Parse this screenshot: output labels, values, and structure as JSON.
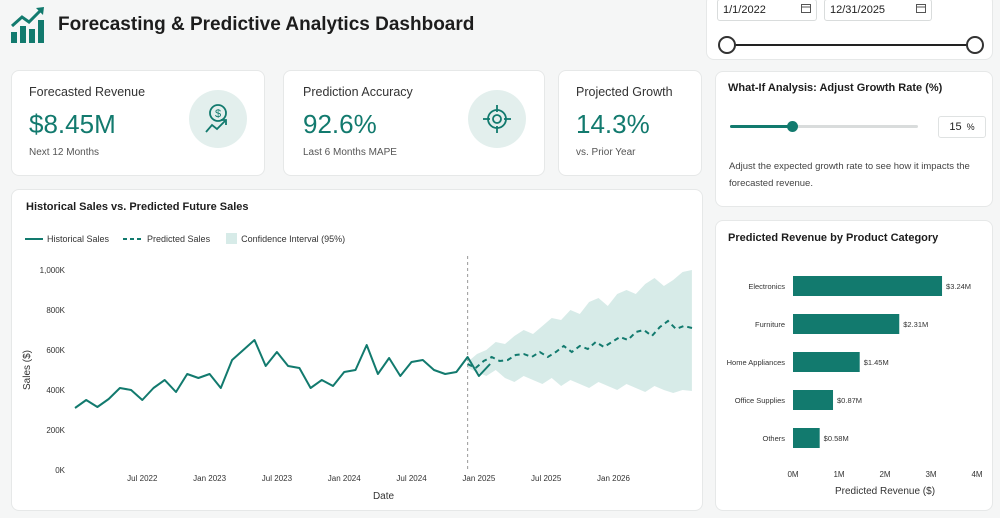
{
  "app": {
    "title": "Forecasting & Predictive Analytics Dashboard"
  },
  "date_range": {
    "start": "1/1/2022",
    "end": "12/31/2025"
  },
  "kpis": [
    {
      "label": "Forecasted Revenue",
      "value": "$8.45M",
      "sub": "Next 12 Months",
      "icon": "dollar-growth-icon"
    },
    {
      "label": "Prediction Accuracy",
      "value": "92.6%",
      "sub": "Last 6 Months MAPE",
      "icon": "target-icon"
    },
    {
      "label": "Projected Growth",
      "value": "14.3%",
      "sub": "vs. Prior Year"
    }
  ],
  "what_if": {
    "title": "What-If Analysis: Adjust Growth Rate (%)",
    "value": "15",
    "unit": "%",
    "slider_fraction": 0.33,
    "description": "Adjust the expected growth rate to see how it impacts the forecasted revenue."
  },
  "colors": {
    "accent": "#127a6e",
    "band": "#d7ebe8"
  },
  "chart_data": [
    {
      "type": "line",
      "title": "Historical Sales vs. Predicted Future Sales",
      "xlabel": "Date",
      "ylabel": "Sales ($)",
      "legend": {
        "historical": "Historical Sales",
        "predicted": "Predicted Sales",
        "band": "Confidence Interval (95%)",
        "position": "top-left"
      },
      "ylim": [
        0,
        1000000
      ],
      "y_ticks": [
        {
          "v": 0,
          "label": "0K"
        },
        {
          "v": 200000,
          "label": "200K"
        },
        {
          "v": 400000,
          "label": "400K"
        },
        {
          "v": 600000,
          "label": "600K"
        },
        {
          "v": 800000,
          "label": "800K"
        },
        {
          "v": 1000000,
          "label": "1,000K"
        }
      ],
      "x_ticks": [
        {
          "m": 6,
          "label": "Jul 2022"
        },
        {
          "m": 12,
          "label": "Jan 2023"
        },
        {
          "m": 18,
          "label": "Jul 2023"
        },
        {
          "m": 24,
          "label": "Jan 2024"
        },
        {
          "m": 30,
          "label": "Jul 2024"
        },
        {
          "m": 36,
          "label": "Jan 2025"
        },
        {
          "m": 42,
          "label": "Jul 2025"
        },
        {
          "m": 48,
          "label": "Jan 2026"
        }
      ],
      "x_range_months": [
        0,
        55
      ],
      "forecast_start_month": 35,
      "historical": [
        310,
        350,
        315,
        355,
        410,
        400,
        350,
        410,
        450,
        390,
        480,
        460,
        480,
        410,
        550,
        600,
        650,
        520,
        590,
        520,
        510,
        410,
        450,
        420,
        490,
        500,
        625,
        480,
        560,
        470,
        540,
        550,
        500,
        480,
        490,
        565,
        470,
        530
      ],
      "historical_start_month": 0,
      "predicted": [
        530,
        510,
        545,
        565,
        545,
        550,
        575,
        580,
        565,
        590,
        565,
        590,
        620,
        590,
        620,
        605,
        640,
        615,
        640,
        665,
        650,
        690,
        700,
        670,
        715,
        745,
        705,
        720,
        710
      ],
      "predicted_start_month": 35,
      "band_upper": [
        540,
        580,
        600,
        640,
        630,
        670,
        700,
        680,
        720,
        760,
        750,
        800,
        780,
        840,
        860,
        820,
        880,
        900,
        880,
        930,
        960,
        920,
        950,
        990,
        1000
      ],
      "band_lower": [
        510,
        490,
        470,
        500,
        460,
        440,
        470,
        450,
        430,
        460,
        420,
        450,
        430,
        410,
        440,
        420,
        400,
        430,
        410,
        390,
        420,
        400,
        385,
        400,
        395
      ],
      "band_start_month": 35,
      "band_step_months": 0.833
    },
    {
      "type": "bar",
      "orientation": "horizontal",
      "title": "Predicted Revenue by Product Category",
      "xlabel": "Predicted Revenue ($)",
      "xlim": [
        0,
        4
      ],
      "x_ticks": [
        "0M",
        "1M",
        "2M",
        "3M",
        "4M"
      ],
      "categories": [
        "Electronics",
        "Furniture",
        "Home Appliances",
        "Office Supplies",
        "Others"
      ],
      "values": [
        3.24,
        2.31,
        1.45,
        0.87,
        0.58
      ],
      "value_labels": [
        "$3.24M",
        "$2.31M",
        "$1.45M",
        "$0.87M",
        "$0.58M"
      ]
    }
  ]
}
